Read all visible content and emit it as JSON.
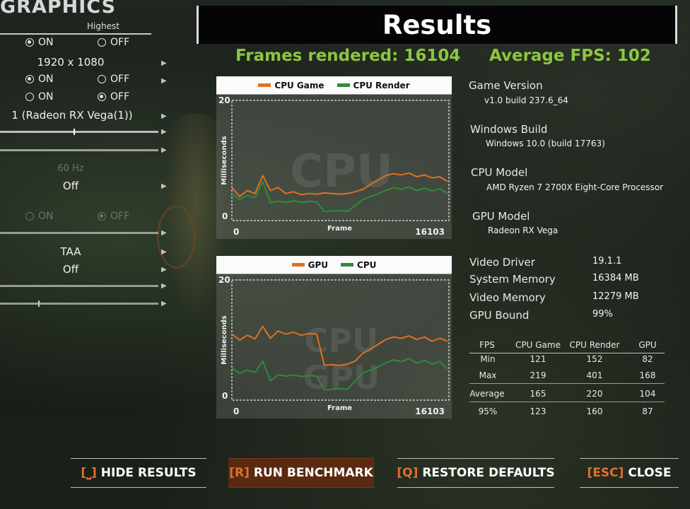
{
  "left_panel": {
    "title": "GRAPHICS",
    "preset_label": "Highest",
    "rows": [
      {
        "on": "ON",
        "off": "OFF",
        "selected": "on"
      },
      {
        "resolution": "1920 x 1080"
      },
      {
        "on": "ON",
        "off": "OFF",
        "selected": "on"
      },
      {
        "on": "ON",
        "off": "OFF",
        "selected": "off"
      },
      {
        "gpu": "1 (Radeon RX Vega(1))"
      },
      {
        "refresh": "60 Hz"
      },
      {
        "value": "Off"
      },
      {
        "on": "ON",
        "off": "OFF",
        "selected": "off"
      },
      {
        "aa": "TAA"
      },
      {
        "value": "Off"
      }
    ]
  },
  "header": {
    "title": "Results",
    "frames_rendered": "Frames rendered: 16104",
    "average_fps": "Average FPS: 102"
  },
  "chart_data": [
    {
      "type": "line",
      "watermark": "CPU",
      "legend": [
        "CPU Game",
        "CPU Render"
      ],
      "x_start_label": "0",
      "x_end_label": "16103",
      "xlabel": "Frame",
      "ylabel": "Milliseconds",
      "y_top_label": "20",
      "y_bottom_label": "0",
      "xlim": [
        0,
        16103
      ],
      "ylim": [
        0,
        20
      ],
      "colors": [
        "#e07020",
        "#2e8b3a"
      ],
      "series": [
        {
          "name": "CPU Game",
          "x": [
            0,
            580,
            1150,
            1730,
            2300,
            2880,
            3450,
            4030,
            4600,
            5180,
            5750,
            6330,
            6900,
            7480,
            8050,
            8630,
            9200,
            9780,
            10350,
            10930,
            11500,
            12080,
            12650,
            13230,
            13800,
            14380,
            14950,
            15530,
            16103
          ],
          "values": [
            5.5,
            4.0,
            5.0,
            4.5,
            7.5,
            5.0,
            5.5,
            4.5,
            4.8,
            4.3,
            4.5,
            4.4,
            4.6,
            4.5,
            4.4,
            4.5,
            4.8,
            5.2,
            6.0,
            6.8,
            7.5,
            7.8,
            7.6,
            7.9,
            7.3,
            7.6,
            7.1,
            7.3,
            6.5
          ]
        },
        {
          "name": "CPU Render",
          "x": [
            0,
            580,
            1150,
            1730,
            2300,
            2880,
            3450,
            4030,
            4600,
            5180,
            5750,
            6330,
            6900,
            7480,
            8050,
            8630,
            9200,
            9780,
            10350,
            10930,
            11500,
            12080,
            12650,
            13230,
            13800,
            14380,
            14950,
            15530,
            16103
          ],
          "values": [
            4.5,
            3.5,
            4.2,
            3.8,
            6.5,
            3.0,
            3.2,
            3.0,
            3.3,
            3.0,
            3.2,
            3.1,
            1.5,
            1.6,
            1.7,
            1.5,
            2.5,
            3.5,
            4.0,
            4.5,
            5.0,
            5.5,
            5.2,
            5.6,
            5.0,
            5.4,
            4.9,
            5.3,
            4.5
          ]
        }
      ]
    },
    {
      "type": "line",
      "watermark": "CPU GPU",
      "legend": [
        "GPU",
        "CPU"
      ],
      "x_start_label": "0",
      "x_end_label": "16103",
      "xlabel": "Frame",
      "ylabel": "Milliseconds",
      "y_top_label": "20",
      "y_bottom_label": "0",
      "xlim": [
        0,
        16103
      ],
      "ylim": [
        0,
        20
      ],
      "colors": [
        "#e07020",
        "#2e8b3a"
      ],
      "series": [
        {
          "name": "GPU",
          "x": [
            0,
            580,
            1150,
            1730,
            2300,
            2880,
            3450,
            4030,
            4600,
            5180,
            5750,
            6330,
            6900,
            7480,
            8050,
            8630,
            9200,
            9780,
            10350,
            10930,
            11500,
            12080,
            12650,
            13230,
            13800,
            14380,
            14950,
            15530,
            16103
          ],
          "values": [
            11.0,
            10.0,
            10.8,
            10.2,
            12.3,
            10.3,
            11.5,
            11.0,
            11.3,
            10.8,
            11.1,
            11.0,
            5.8,
            5.9,
            5.8,
            6.0,
            6.5,
            7.8,
            8.5,
            9.3,
            10.1,
            10.5,
            10.3,
            10.7,
            10.1,
            10.5,
            9.8,
            10.3,
            9.8
          ]
        },
        {
          "name": "CPU",
          "x": [
            0,
            580,
            1150,
            1730,
            2300,
            2880,
            3450,
            4030,
            4600,
            5180,
            5750,
            6330,
            6900,
            7480,
            8050,
            8630,
            9200,
            9780,
            10350,
            10930,
            11500,
            12080,
            12650,
            13230,
            13800,
            14380,
            14950,
            15530,
            16103
          ],
          "values": [
            5.3,
            4.5,
            5.0,
            4.6,
            6.5,
            3.2,
            4.2,
            4.0,
            4.2,
            3.9,
            4.1,
            4.0,
            1.7,
            1.8,
            1.9,
            1.8,
            3.2,
            4.5,
            5.0,
            5.5,
            6.2,
            6.7,
            6.4,
            6.9,
            6.2,
            6.6,
            6.0,
            6.4,
            5.2
          ]
        }
      ]
    }
  ],
  "info": {
    "game_version": {
      "label": "Game Version",
      "value": "v1.0 build 237.6_64"
    },
    "windows_build": {
      "label": "Windows Build",
      "value": "Windows 10.0 (build 17763)"
    },
    "cpu_model": {
      "label": "CPU Model",
      "value": "AMD Ryzen 7 2700X Eight-Core Processor"
    },
    "gpu_model": {
      "label": "GPU Model",
      "value": "Radeon RX Vega"
    },
    "specs": [
      {
        "label": "Video Driver",
        "value": "19.1.1"
      },
      {
        "label": "System Memory",
        "value": "16384 MB"
      },
      {
        "label": "Video Memory",
        "value": "12279 MB"
      },
      {
        "label": "GPU Bound",
        "value": "99%"
      }
    ]
  },
  "stats": {
    "headers": [
      "FPS",
      "CPU Game",
      "CPU Render",
      "GPU"
    ],
    "rows": [
      {
        "label": "Min",
        "values": [
          "121",
          "152",
          "82"
        ]
      },
      {
        "label": "Max",
        "values": [
          "219",
          "401",
          "168"
        ]
      },
      {
        "label": "Average",
        "values": [
          "165",
          "220",
          "104"
        ]
      },
      {
        "label": "95%",
        "values": [
          "123",
          "160",
          "87"
        ]
      }
    ]
  },
  "buttons": [
    {
      "key": "[⎵]",
      "label": "HIDE RESULTS"
    },
    {
      "key": "[R]",
      "label": "RUN BENCHMARK"
    },
    {
      "key": "[Q]",
      "label": "RESTORE DEFAULTS"
    },
    {
      "key": "[ESC]",
      "label": "CLOSE"
    }
  ],
  "colors": {
    "accent_green": "#8dc63f",
    "accent_orange": "#e0702a",
    "active_button": "#5a2a10"
  }
}
